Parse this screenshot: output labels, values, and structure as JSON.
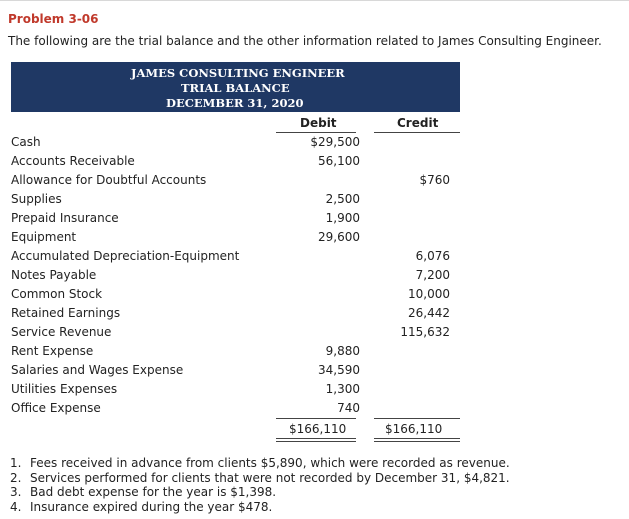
{
  "problem_title": "Problem 3-06",
  "intro": "The following are the trial balance and the other information related to James Consulting Engineer.",
  "header": {
    "line1": "JAMES CONSULTING ENGINEER",
    "line2": "TRIAL BALANCE",
    "line3": "DECEMBER 31, 2020"
  },
  "columns": {
    "debit": "Debit",
    "credit": "Credit"
  },
  "rows": [
    {
      "account": "Cash",
      "debit": "$29,500",
      "credit": ""
    },
    {
      "account": "Accounts Receivable",
      "debit": "56,100",
      "credit": ""
    },
    {
      "account": "Allowance for Doubtful Accounts",
      "debit": "",
      "credit": "$760"
    },
    {
      "account": "Supplies",
      "debit": "2,500",
      "credit": ""
    },
    {
      "account": "Prepaid Insurance",
      "debit": "1,900",
      "credit": ""
    },
    {
      "account": "Equipment",
      "debit": "29,600",
      "credit": ""
    },
    {
      "account": "Accumulated Depreciation-Equipment",
      "debit": "",
      "credit": "6,076"
    },
    {
      "account": "Notes Payable",
      "debit": "",
      "credit": "7,200"
    },
    {
      "account": "Common Stock",
      "debit": "",
      "credit": "10,000"
    },
    {
      "account": "Retained Earnings",
      "debit": "",
      "credit": "26,442"
    },
    {
      "account": "Service Revenue",
      "debit": "",
      "credit": "115,632"
    },
    {
      "account": "Rent Expense",
      "debit": "9,880",
      "credit": ""
    },
    {
      "account": "Salaries and Wages Expense",
      "debit": "34,590",
      "credit": ""
    },
    {
      "account": "Utilities Expenses",
      "debit": "1,300",
      "credit": ""
    },
    {
      "account": "Office Expense",
      "debit": "740",
      "credit": ""
    }
  ],
  "totals": {
    "debit": "$166,110",
    "credit": "$166,110"
  },
  "notes": [
    {
      "num": "1.",
      "text": "Fees received in advance from clients $5,890, which were recorded as revenue."
    },
    {
      "num": "2.",
      "text": "Services performed for clients that were not recorded by December 31, $4,821."
    },
    {
      "num": "3.",
      "text": "Bad debt expense for the year is $1,398."
    },
    {
      "num": "4.",
      "text": "Insurance expired during the year $478."
    }
  ],
  "colors": {
    "title_red": "#c0392b",
    "header_navy": "#1f3864"
  }
}
